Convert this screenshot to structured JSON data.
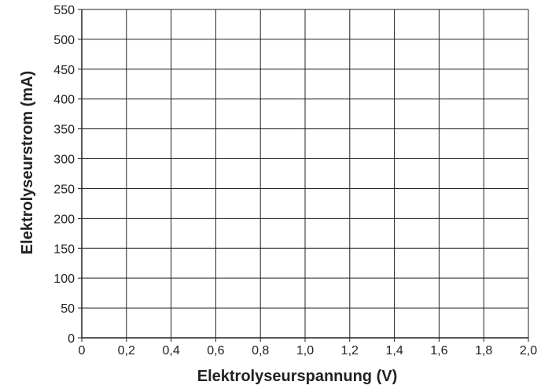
{
  "chart_data": {
    "type": "line",
    "title": "",
    "xlabel": "Elektrolyseurspannung (V)",
    "ylabel": "Elektrolyseurstrom (mA)",
    "xlim": [
      0,
      2.0
    ],
    "ylim": [
      0,
      550
    ],
    "x_ticks": [
      "0",
      "0,2",
      "0,4",
      "0,6",
      "0,8",
      "1,0",
      "1,2",
      "1,4",
      "1,6",
      "1,8",
      "2,0"
    ],
    "x_tick_values": [
      0,
      0.2,
      0.4,
      0.6,
      0.8,
      1.0,
      1.2,
      1.4,
      1.6,
      1.8,
      2.0
    ],
    "y_ticks": [
      "0",
      "50",
      "100",
      "150",
      "200",
      "250",
      "300",
      "350",
      "400",
      "450",
      "500",
      "550"
    ],
    "y_tick_values": [
      0,
      50,
      100,
      150,
      200,
      250,
      300,
      350,
      400,
      450,
      500,
      550
    ],
    "grid": true,
    "series": [],
    "colors": {
      "grid": "#222222",
      "axis": "#222222",
      "text": "#222222",
      "background": "#ffffff"
    }
  }
}
